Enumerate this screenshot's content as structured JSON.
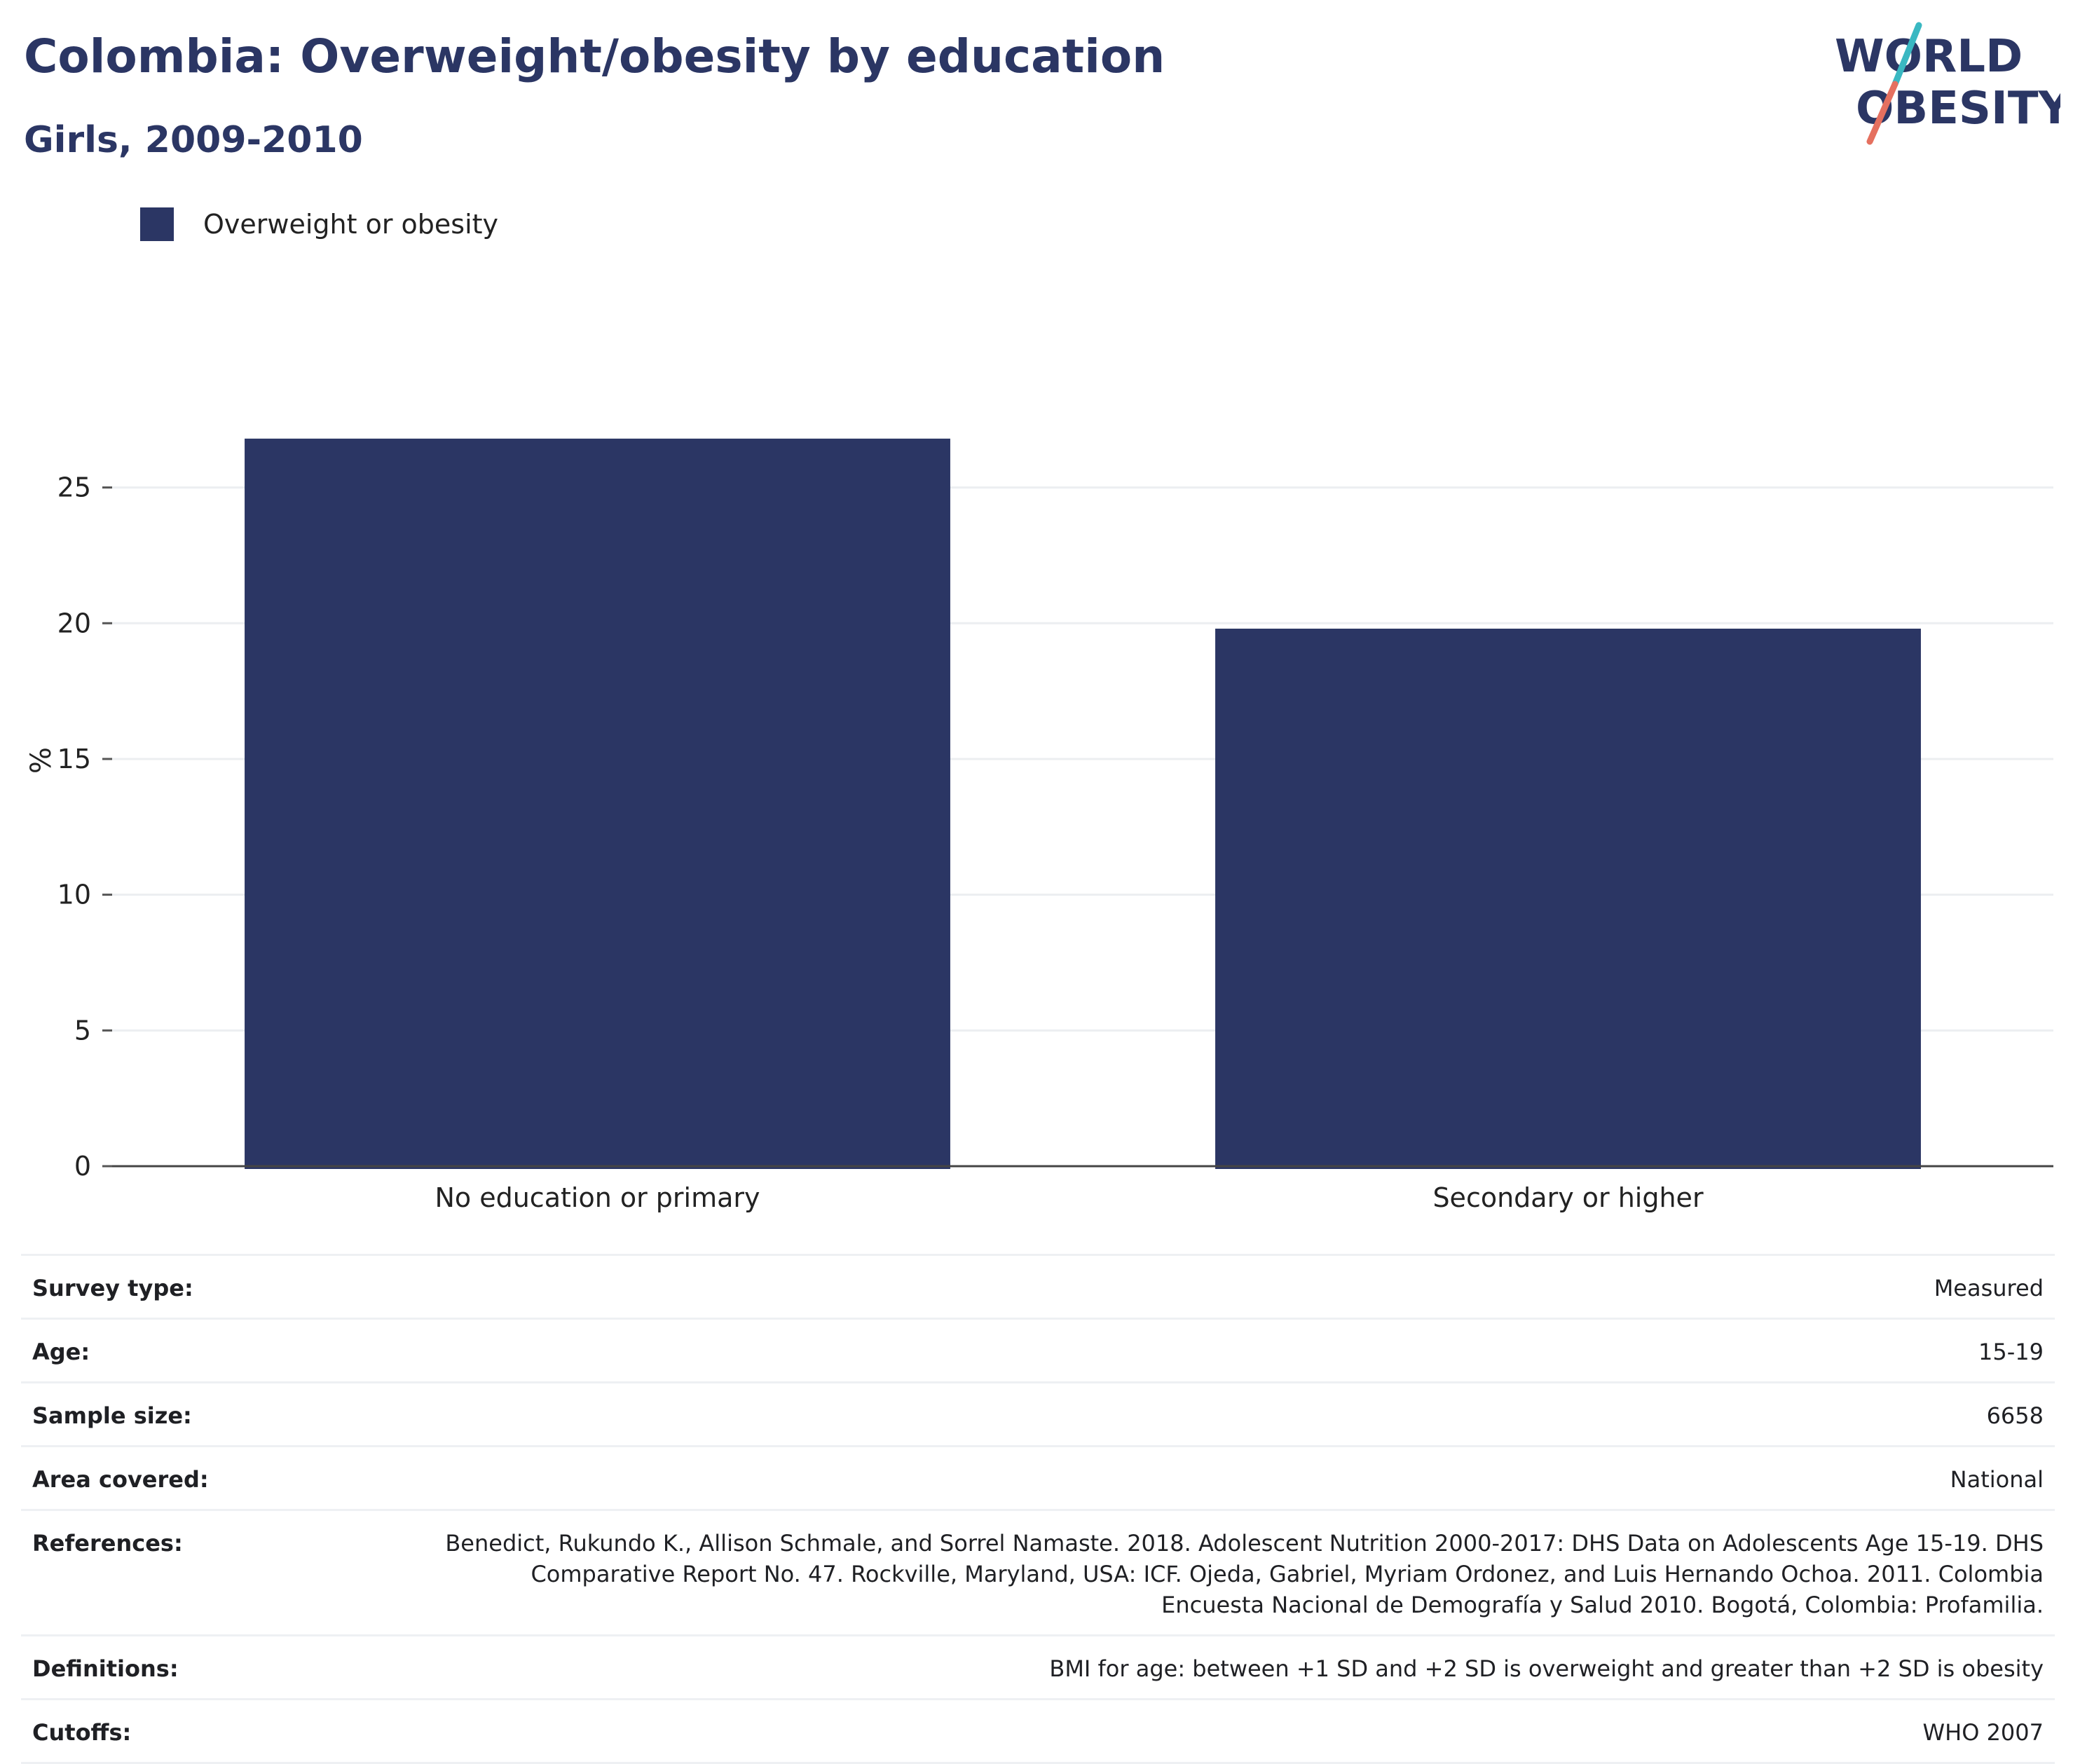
{
  "header": {
    "title": "Colombia: Overweight/obesity by education",
    "subtitle": "Girls, 2009-2010"
  },
  "logo": {
    "line1": "WORLD",
    "line2": "OBESITY",
    "icon": "world-obesity-logo",
    "colors": {
      "text": "#2b3664",
      "slash_teal": "#3ab8c2",
      "slash_coral": "#e5705f"
    }
  },
  "legend": {
    "label": "Overweight or obesity",
    "color": "#2b3664"
  },
  "chart_data": {
    "type": "bar",
    "categories": [
      "No education or primary",
      "Secondary or higher"
    ],
    "series": [
      {
        "name": "Overweight or obesity",
        "values": [
          26.8,
          19.8
        ],
        "color": "#2b3664"
      }
    ],
    "title": "Colombia: Overweight/obesity by education",
    "subtitle": "Girls, 2009-2010",
    "xlabel": "",
    "ylabel": "%",
    "ylim": [
      0,
      28.5
    ],
    "yticks": [
      0,
      5,
      10,
      15,
      20,
      25
    ],
    "grid": true,
    "legend_position": "top-left"
  },
  "info": {
    "rows": [
      {
        "label": "Survey type:",
        "value": "Measured"
      },
      {
        "label": "Age:",
        "value": "15-19"
      },
      {
        "label": "Sample size:",
        "value": "6658"
      },
      {
        "label": "Area covered:",
        "value": "National"
      },
      {
        "label": "References:",
        "value": "Benedict, Rukundo K., Allison Schmale, and Sorrel Namaste. 2018. Adolescent Nutrition 2000-2017: DHS Data on Adolescents Age 15-19. DHS Comparative Report No. 47. Rockville, Maryland, USA: ICF. Ojeda, Gabriel, Myriam Ordonez, and Luis Hernando Ochoa. 2011. Colombia Encuesta Nacional de Demografía y Salud 2010. Bogotá, Colombia: Profamilia."
      },
      {
        "label": "Definitions:",
        "value": "BMI for age: between +1 SD and +2 SD is overweight and greater than +2 SD is obesity"
      },
      {
        "label": "Cutoffs:",
        "value": "WHO 2007"
      }
    ]
  }
}
